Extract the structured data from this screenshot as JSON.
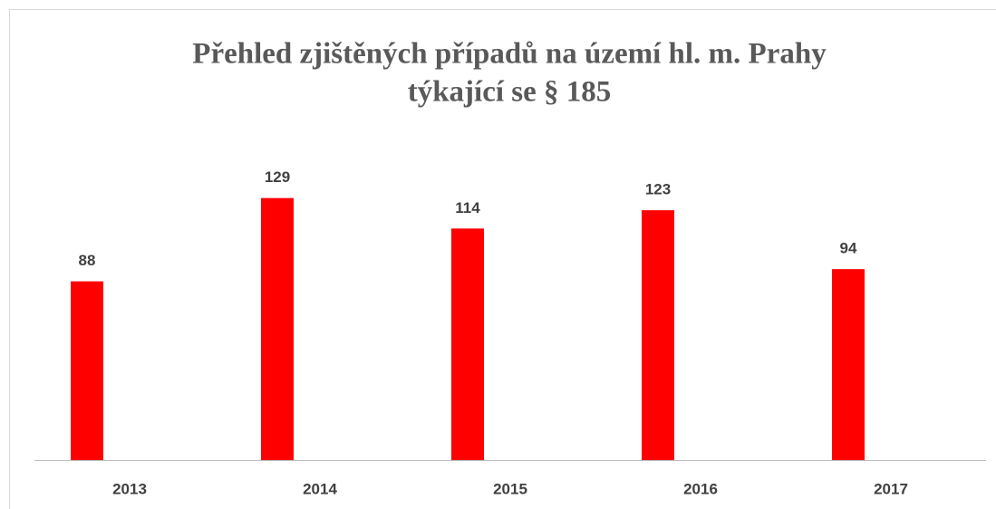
{
  "chart_data": {
    "type": "bar",
    "title": [
      "Přehled zjištěných případů na území hl. m. Prahy",
      "týkající se § 185"
    ],
    "categories": [
      "2013",
      "2014",
      "2015",
      "2016",
      "2017"
    ],
    "values": [
      88,
      129,
      114,
      123,
      94
    ],
    "color": "#ff0000",
    "ylim": [
      0,
      140
    ]
  }
}
